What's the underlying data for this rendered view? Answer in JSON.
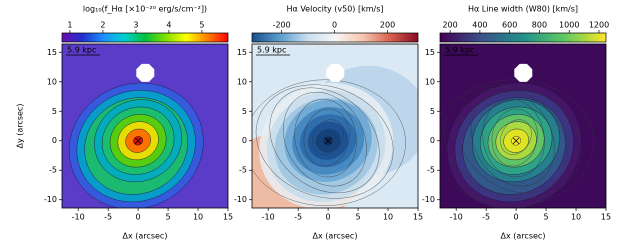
{
  "chart_data": [
    {
      "type": "heatmap",
      "colorbar_label": "log₁₀(f_Hα [×10⁻²⁰ erg/s/cm⁻²])",
      "colorbar_lim": [
        0.76,
        5.79
      ],
      "colorbar_ticks": [
        1,
        2,
        3,
        4,
        5
      ],
      "colors": [
        "#6a0dad",
        "#1f2fd0",
        "#1e90ff",
        "#00d0d0",
        "#00c040",
        "#80e000",
        "#ffff00",
        "#ff8000",
        "#ff0000"
      ],
      "scale_label": "5.9 kpc",
      "xlabel": "Δx (arcsec)",
      "ylabel": "Δy (arcsec)",
      "xlim": [
        -12.7,
        15
      ],
      "xticks": [
        -10,
        -5,
        0,
        5,
        10,
        15
      ],
      "ylim": [
        -11.4,
        16.4
      ],
      "yticks": [
        -10,
        -5,
        0,
        5,
        10,
        15
      ]
    },
    {
      "type": "heatmap",
      "colorbar_label": "Hα Velocity (v50) [km/s]",
      "colorbar_lim": [
        -312,
        315
      ],
      "colorbar_ticks": [
        -200,
        0,
        200
      ],
      "colors": [
        "#1a4f8f",
        "#5a9ccc",
        "#c8dff0",
        "#f7f7f7",
        "#f6c7b0",
        "#d6604d",
        "#8b0a26"
      ],
      "scale_label": "5.9 kpc",
      "xlabel": "Δx (arcsec)",
      "xlim": [
        -12.7,
        15
      ],
      "xticks": [
        -10,
        -5,
        0,
        5,
        10,
        15
      ],
      "ylim": [
        -11.4,
        16.4
      ],
      "yticks": [
        -10,
        -5,
        0,
        5,
        10,
        15
      ]
    },
    {
      "type": "heatmap",
      "colorbar_label": "Hα Line width (W80) [km/s]",
      "colorbar_lim": [
        132,
        1247
      ],
      "colorbar_ticks": [
        200,
        400,
        600,
        800,
        1000,
        1200
      ],
      "colors": [
        "#440154",
        "#3b528b",
        "#21918c",
        "#5ec962",
        "#fde725"
      ],
      "scale_label": "5.9 kpc",
      "xlabel": "Δx (arcsec)",
      "xlim": [
        -12.7,
        15
      ],
      "xticks": [
        -10,
        -5,
        0,
        5,
        10,
        15
      ],
      "ylim": [
        -11.4,
        16.4
      ],
      "yticks": [
        -10,
        -5,
        0,
        5,
        10,
        15
      ]
    }
  ]
}
